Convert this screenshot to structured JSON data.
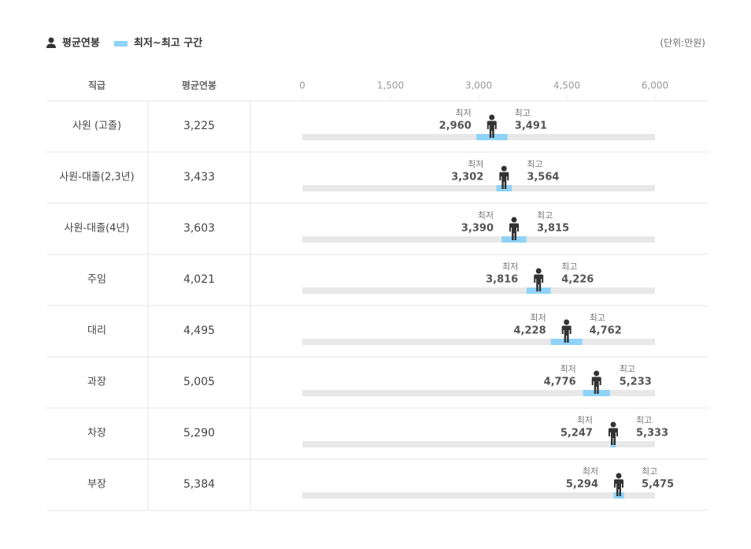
{
  "chart_data": {
    "type": "range",
    "unit_note": "(단위:만원)",
    "category_header": "직급",
    "range_name": "최저~최고 구간",
    "range_color": "#8fd3f9",
    "track_color": "#e8e8e8",
    "categories": [
      "사원 (고졸)",
      "사원-대졸(2,3년)",
      "사원-대졸(4년)",
      "주임",
      "대리",
      "과장",
      "차장",
      "부장"
    ],
    "series": [
      {
        "name": "평균연봉",
        "color": "#333333",
        "values": [
          3225,
          3433,
          3603,
          4021,
          4495,
          5005,
          5290,
          5384
        ],
        "value_labels": [
          "3,225",
          "3,433",
          "3,603",
          "4,021",
          "4,495",
          "5,005",
          "5,290",
          "5,384"
        ]
      },
      {
        "name": "최저",
        "color": "#555555",
        "values": [
          2960,
          3302,
          3390,
          3816,
          4228,
          4776,
          5247,
          5294
        ],
        "value_labels": [
          "2,960",
          "3,302",
          "3,390",
          "3,816",
          "4,228",
          "4,776",
          "5,247",
          "5,294"
        ]
      },
      {
        "name": "최고",
        "color": "#555555",
        "values": [
          3491,
          3564,
          3815,
          4226,
          4762,
          5233,
          5333,
          5475
        ],
        "value_labels": [
          "3,491",
          "3,564",
          "3,815",
          "4,226",
          "4,762",
          "5,233",
          "5,333",
          "5,475"
        ]
      }
    ],
    "xlim": [
      0,
      6000
    ],
    "xticks": [
      0,
      {
        "value": 1500,
        "label": "1,500"
      },
      {
        "value": 3000,
        "label": "3,000"
      },
      {
        "value": 4500,
        "label": "4,500"
      },
      {
        "value": 6000,
        "label": "6,000"
      }
    ]
  }
}
